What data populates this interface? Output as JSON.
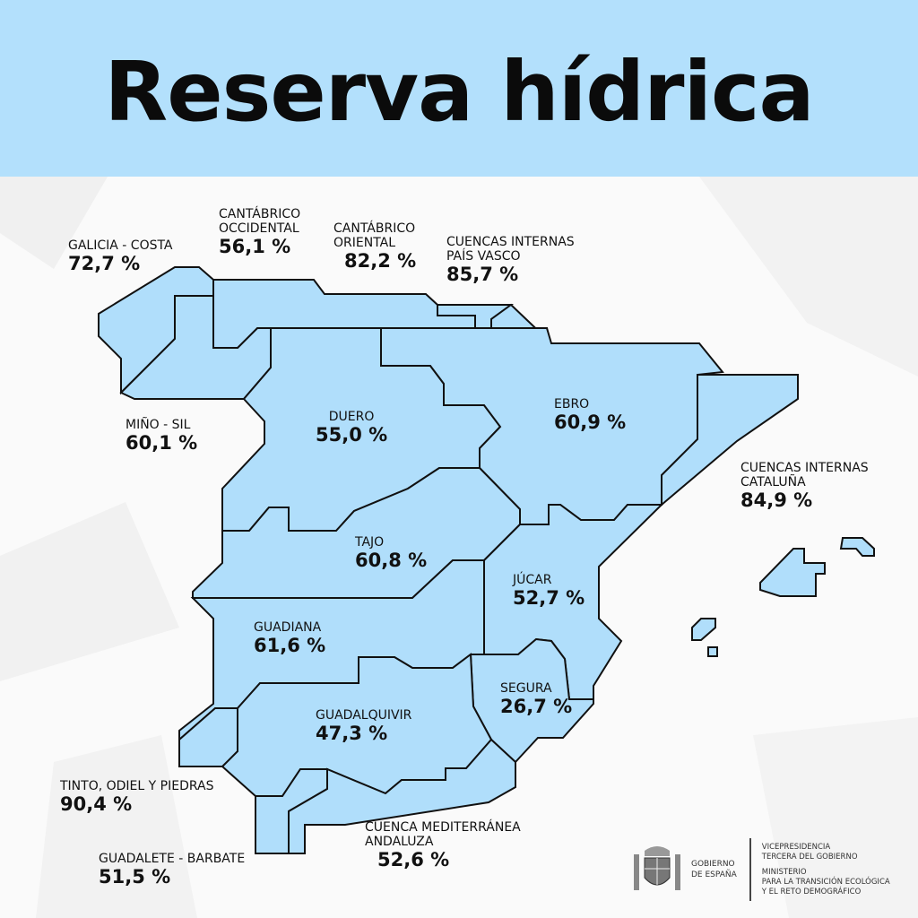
{
  "title": "Reserva hídrica",
  "colors": {
    "header": "#b3e0fc",
    "region_fill": "#b0defb",
    "border": "#111111"
  },
  "regions": [
    {
      "name": "GALICIA - COSTA",
      "value": "72,7 %"
    },
    {
      "name": "CANTÁBRICO OCCIDENTAL",
      "value": "56,1 %"
    },
    {
      "name": "CANTÁBRICO ORIENTAL",
      "value": "82,2 %"
    },
    {
      "name": "CUENCAS INTERNAS PAÍS VASCO",
      "value": "85,7 %"
    },
    {
      "name": "MIÑO - SIL",
      "value": "60,1 %"
    },
    {
      "name": "DUERO",
      "value": "55,0 %"
    },
    {
      "name": "EBRO",
      "value": "60,9 %"
    },
    {
      "name": "CUENCAS INTERNAS CATALUÑA",
      "value": "84,9 %"
    },
    {
      "name": "TAJO",
      "value": "60,8 %"
    },
    {
      "name": "JÚCAR",
      "value": "52,7 %"
    },
    {
      "name": "GUADIANA",
      "value": "61,6 %"
    },
    {
      "name": "SEGURA",
      "value": "26,7 %"
    },
    {
      "name": "GUADALQUIVIR",
      "value": "47,3 %"
    },
    {
      "name": "TINTO, ODIEL Y PIEDRAS",
      "value": "90,4 %"
    },
    {
      "name": "CUENCA MEDITERRÁNEA ANDALUZA",
      "value": "52,6 %"
    },
    {
      "name": "GUADALETE - BARBATE",
      "value": "51,5 %"
    }
  ],
  "footer": {
    "gobierno": [
      "GOBIERNO",
      "DE ESPAÑA"
    ],
    "ministry": [
      "VICEPRESIDENCIA",
      "TERCERA DEL GOBIERNO",
      "MINISTERIO",
      "PARA LA TRANSICIÓN ECOLÓGICA",
      "Y EL RETO DEMOGRÁFICO"
    ]
  }
}
